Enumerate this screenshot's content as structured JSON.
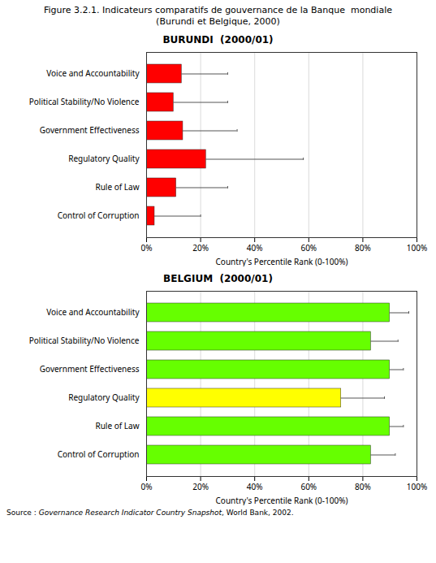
{
  "title": "Figure 3.2.1. Indicateurs comparatifs de gouvernance de la Banque  mondiale",
  "subtitle": "(Burundi et Belgique, 2000)",
  "caption": [
    "Source : ",
    "Governance Research Indicator Country Snapshot",
    ", World Bank, 2002."
  ],
  "chart_data": [
    {
      "type": "bar",
      "orientation": "horizontal",
      "title": "BURUNDI  (2000/01)",
      "categories": [
        "Voice and Accountability",
        "Political Stability/No Violence",
        "Government Effectiveness",
        "Regulatory Quality",
        "Rule of Law",
        "Control of Corruption"
      ],
      "values": [
        13.0,
        10.0,
        13.5,
        22.0,
        11.0,
        3.0
      ],
      "error_high": [
        17.0,
        20.0,
        20.0,
        36.0,
        19.0,
        17.0
      ],
      "color": "#FF0000",
      "xlabel": "Country's Percentile Rank (0-100%)",
      "xlim": [
        0,
        100
      ],
      "xticks": [
        {
          "value": 0,
          "label": "0%"
        },
        {
          "value": 20,
          "label": "20%"
        },
        {
          "value": 40,
          "label": "40%"
        },
        {
          "value": 60,
          "label": "60%"
        },
        {
          "value": 80,
          "label": "80%"
        },
        {
          "value": 100,
          "label": "100%"
        }
      ],
      "grid": true
    },
    {
      "type": "bar",
      "orientation": "horizontal",
      "title": "BELGIUM  (2000/01)",
      "categories": [
        "Voice and Accountability",
        "Political Stability/No Violence",
        "Government Effectiveness",
        "Regulatory Quality",
        "Rule of Law",
        "Control of Corruption"
      ],
      "values": [
        90.0,
        83.0,
        90.0,
        72.0,
        90.0,
        83.0
      ],
      "error_high": [
        7.0,
        10.0,
        5.0,
        16.0,
        5.0,
        9.0
      ],
      "colors": [
        "#66FF00",
        "#66FF00",
        "#66FF00",
        "#FFFF00",
        "#66FF00",
        "#66FF00"
      ],
      "xlabel": "Country's Percentile Rank (0-100%)",
      "xlim": [
        0,
        100
      ],
      "xticks": [
        {
          "value": 0,
          "label": "0%"
        },
        {
          "value": 20,
          "label": "20%"
        },
        {
          "value": 40,
          "label": "40%"
        },
        {
          "value": 60,
          "label": "60%"
        },
        {
          "value": 80,
          "label": "80%"
        },
        {
          "value": 100,
          "label": "100%"
        }
      ],
      "grid": true
    }
  ]
}
